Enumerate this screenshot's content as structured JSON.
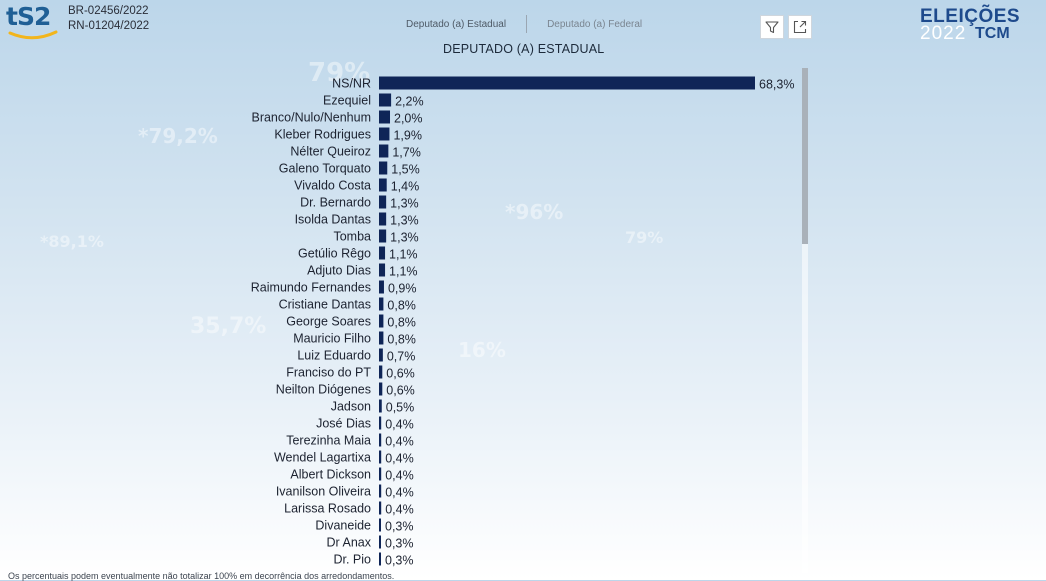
{
  "header": {
    "logo_text": "tS2",
    "registrations": [
      "BR-02456/2022",
      "RN-01204/2022"
    ],
    "tabs": [
      {
        "label": "Deputado (a) Estadual",
        "active": true
      },
      {
        "label": "Deputado (a) Federal",
        "active": false
      }
    ],
    "filter_icon": "filter-icon",
    "expand_icon": "expand-icon",
    "brand_top": "ELEIÇÕES",
    "brand_year": "2022",
    "brand_tcm": "TCM"
  },
  "colors": {
    "bar": "#0f2557",
    "label": "#1c2230",
    "brand": "#1e4a8c"
  },
  "chart_data": {
    "type": "bar",
    "orientation": "horizontal",
    "title": "DEPUTADO (A) ESTADUAL",
    "xlim": [
      0,
      68.3
    ],
    "categories": [
      "NS/NR",
      "Ezequiel",
      "Branco/Nulo/Nenhum",
      "Kleber Rodrigues",
      "Nélter Queiroz",
      "Galeno Torquato",
      "Vivaldo Costa",
      "Dr. Bernardo",
      "Isolda Dantas",
      "Tomba",
      "Getúlio Rêgo",
      "Adjuto Dias",
      "Raimundo Fernandes",
      "Cristiane Dantas",
      "George Soares",
      "Mauricio Filho",
      "Luiz Eduardo",
      "Franciso do PT",
      "Neilton Diógenes",
      "Jadson",
      "José Dias",
      "Terezinha Maia",
      "Wendel Lagartixa",
      "Albert Dickson",
      "Ivanilson Oliveira",
      "Larissa Rosado",
      "Divaneide",
      "Dr Anax",
      "Dr. Pio"
    ],
    "values": [
      68.3,
      2.2,
      2.0,
      1.9,
      1.7,
      1.5,
      1.4,
      1.3,
      1.3,
      1.3,
      1.1,
      1.1,
      0.9,
      0.8,
      0.8,
      0.8,
      0.7,
      0.6,
      0.6,
      0.5,
      0.4,
      0.4,
      0.4,
      0.4,
      0.4,
      0.4,
      0.3,
      0.3,
      0.3
    ],
    "value_labels": [
      "68,3%",
      "2,2%",
      "2,0%",
      "1,9%",
      "1,7%",
      "1,5%",
      "1,4%",
      "1,3%",
      "1,3%",
      "1,3%",
      "1,1%",
      "1,1%",
      "0,9%",
      "0,8%",
      "0,8%",
      "0,8%",
      "0,7%",
      "0,6%",
      "0,6%",
      "0,5%",
      "0,4%",
      "0,4%",
      "0,4%",
      "0,4%",
      "0,4%",
      "0,4%",
      "0,3%",
      "0,3%",
      "0,3%"
    ]
  },
  "footnote": "Os percentuais podem eventualmente não totalizar 100% em decorrência dos arredondamentos."
}
